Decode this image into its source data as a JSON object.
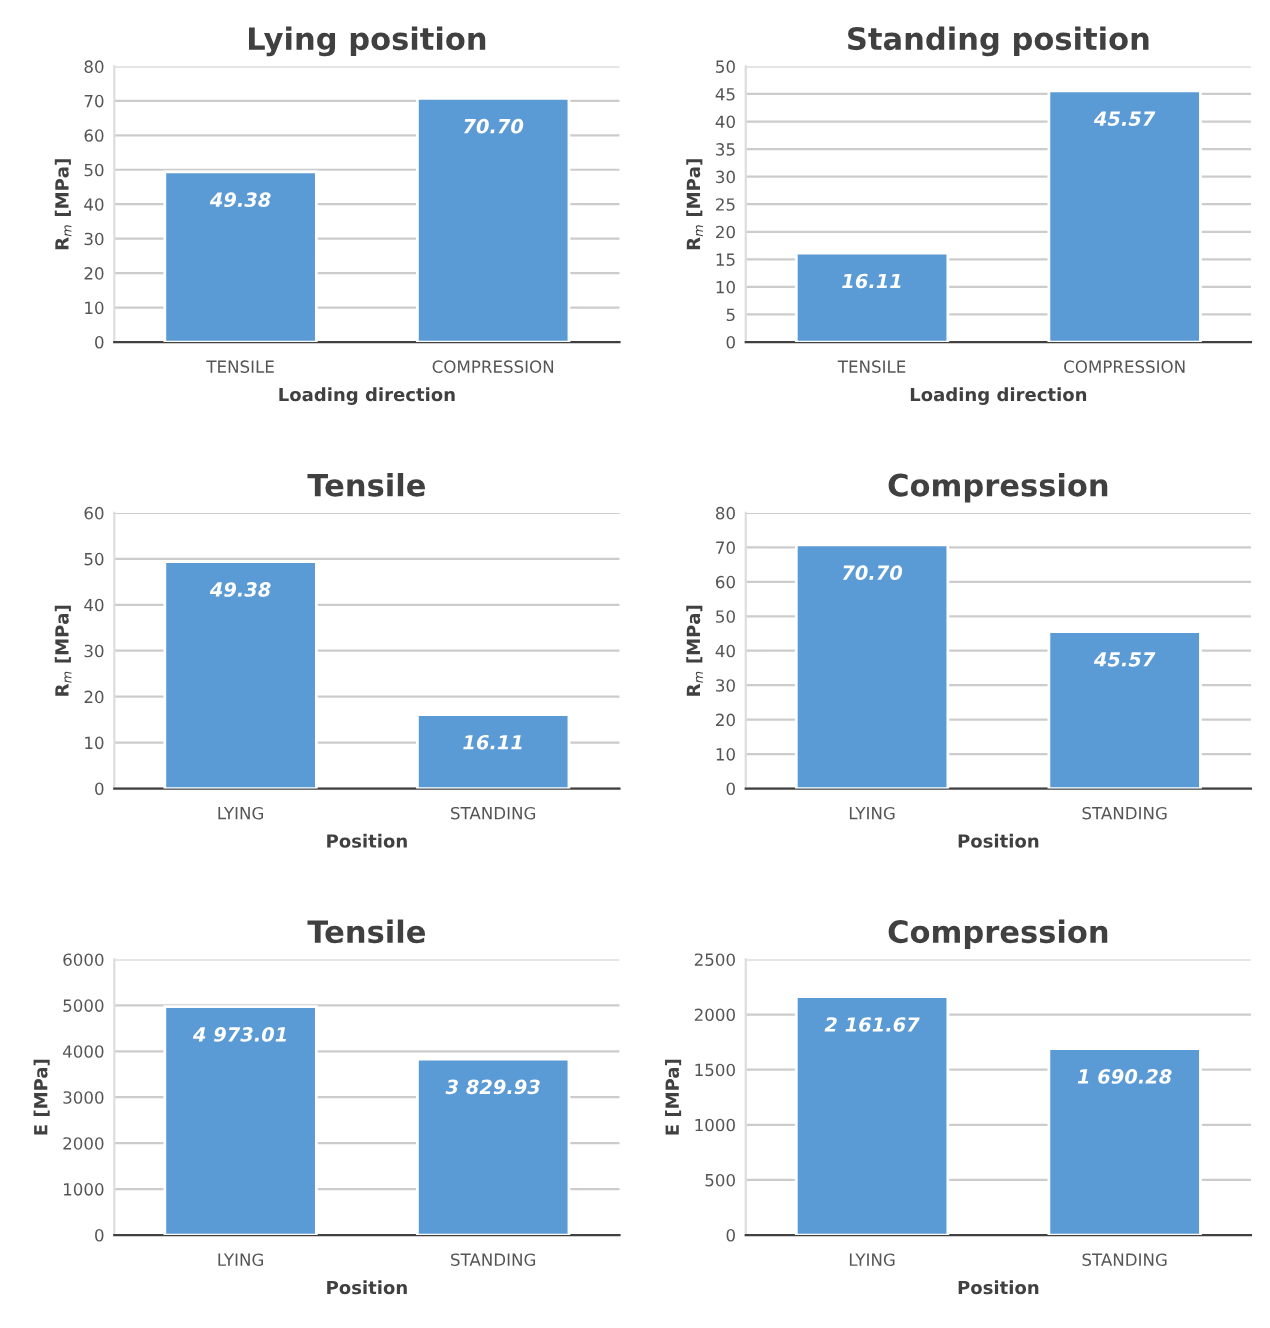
{
  "chart_data": [
    {
      "type": "bar",
      "title": "Lying position",
      "xlabel": "Loading direction",
      "ylabel": "R$_{m}$ [MPa]",
      "categories": [
        "TENSILE",
        "COMPRESSION"
      ],
      "values": [
        49.38,
        70.7
      ],
      "value_labels": [
        "49.38",
        "70.70"
      ],
      "color": "#5b9bd5",
      "ylim": [
        0,
        80
      ],
      "yticks": [
        0,
        10,
        20,
        30,
        40,
        50,
        60,
        70,
        80
      ],
      "grid": "y"
    },
    {
      "type": "bar",
      "title": "Standing position",
      "xlabel": "Loading direction",
      "ylabel": "R$_{m}$ [MPa]",
      "categories": [
        "TENSILE",
        "COMPRESSION"
      ],
      "values": [
        16.11,
        45.57
      ],
      "value_labels": [
        "16.11",
        "45.57"
      ],
      "color": "#5b9bd5",
      "ylim": [
        0,
        50
      ],
      "yticks": [
        0,
        5,
        10,
        15,
        20,
        25,
        30,
        35,
        40,
        45,
        50
      ],
      "grid": "y"
    },
    {
      "type": "bar",
      "title": "Tensile",
      "xlabel": "Position",
      "ylabel": "R$_{m}$ [MPa]",
      "categories": [
        "LYING",
        "STANDING"
      ],
      "values": [
        49.38,
        16.11
      ],
      "value_labels": [
        "49.38",
        "16.11"
      ],
      "color": "#5b9bd5",
      "ylim": [
        0,
        60
      ],
      "yticks": [
        0,
        10,
        20,
        30,
        40,
        50,
        60
      ],
      "grid": "y"
    },
    {
      "type": "bar",
      "title": "Compression",
      "xlabel": "Position",
      "ylabel": "R$_{m}$ [MPa]",
      "categories": [
        "LYING",
        "STANDING"
      ],
      "values": [
        70.7,
        45.57
      ],
      "value_labels": [
        "70.70",
        "45.57"
      ],
      "color": "#5b9bd5",
      "ylim": [
        0,
        80
      ],
      "yticks": [
        0,
        10,
        20,
        30,
        40,
        50,
        60,
        70,
        80
      ],
      "grid": "y"
    },
    {
      "type": "bar",
      "title": "Tensile",
      "xlabel": "Position",
      "ylabel": "E [MPa]",
      "categories": [
        "LYING",
        "STANDING"
      ],
      "values": [
        4973.01,
        3829.93
      ],
      "value_labels": [
        "4 973.01",
        "3 829.93"
      ],
      "color": "#5b9bd5",
      "ylim": [
        0,
        6000
      ],
      "yticks": [
        0,
        1000,
        2000,
        3000,
        4000,
        5000,
        6000
      ],
      "grid": "y"
    },
    {
      "type": "bar",
      "title": "Compression",
      "xlabel": "Position",
      "ylabel": "E [MPa]",
      "categories": [
        "LYING",
        "STANDING"
      ],
      "values": [
        2161.67,
        1690.28
      ],
      "value_labels": [
        "2 161.67",
        "1 690.28"
      ],
      "color": "#5b9bd5",
      "ylim": [
        0,
        2500
      ],
      "yticks": [
        0,
        500,
        1000,
        1500,
        2000,
        2500
      ],
      "grid": "y"
    }
  ]
}
